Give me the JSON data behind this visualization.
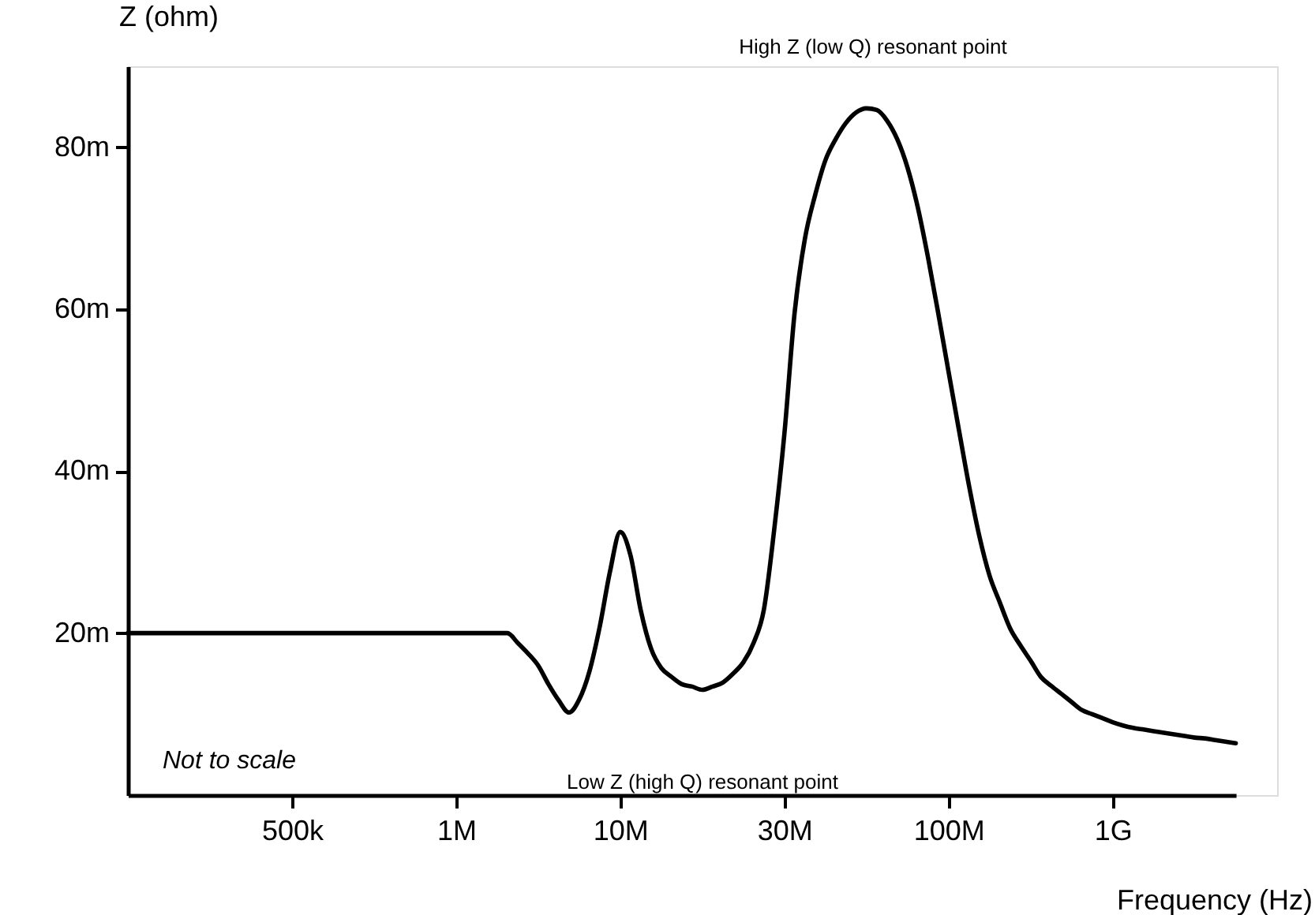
{
  "chart_data": {
    "type": "line",
    "xlabel": "Frequency (Hz)",
    "ylabel": "Z (ohm)",
    "categories": [
      null,
      null,
      null,
      null,
      null,
      null,
      null,
      null,
      null,
      null,
      null,
      null,
      null,
      null,
      null,
      null,
      "500k",
      null,
      null,
      null,
      null,
      null,
      null,
      null,
      null,
      null,
      null,
      null,
      null,
      null,
      null,
      null,
      "1M",
      null,
      null,
      null,
      null,
      null,
      null,
      null,
      null,
      null,
      null,
      null,
      null,
      null,
      null,
      null,
      "10M",
      null,
      null,
      null,
      null,
      null,
      null,
      null,
      null,
      null,
      null,
      null,
      null,
      null,
      null,
      null,
      "30M",
      null,
      null,
      null,
      null,
      null,
      null,
      null,
      null,
      null,
      null,
      null,
      null,
      null,
      null,
      null,
      "100M",
      null,
      null,
      null,
      null,
      null,
      null,
      null,
      null,
      null,
      null,
      null,
      null,
      null,
      null,
      null,
      "1G",
      null,
      null,
      null,
      null,
      null,
      null,
      null,
      null,
      null,
      null,
      null,
      null
    ],
    "series": [
      {
        "color": "#000000",
        "values": [
          20,
          20,
          20,
          20,
          20,
          20,
          20,
          20,
          20,
          20,
          20,
          20,
          20,
          20,
          20,
          20,
          20,
          20,
          20,
          20,
          20,
          20,
          20,
          20,
          20,
          20,
          20,
          20,
          20,
          20,
          20,
          20,
          20,
          20,
          20,
          20,
          20,
          20,
          18.8,
          17.5,
          16.0,
          13.7,
          11.7,
          10.2,
          11.8,
          15.3,
          20.8,
          27.6,
          32.5,
          29.6,
          22.8,
          18.1,
          15.7,
          14.6,
          13.7,
          13.4,
          13.0,
          13.4,
          13.9,
          15.0,
          16.4,
          18.8,
          22.9,
          32.7,
          44.6,
          59.6,
          68.7,
          74.1,
          78.4,
          81.0,
          83.0,
          84.3,
          84.8,
          84.6,
          83.3,
          81.0,
          77.5,
          72.6,
          66.4,
          59.5,
          52.3,
          45.2,
          38.2,
          32.0,
          27.1,
          23.8,
          20.6,
          18.5,
          16.6,
          14.6,
          13.5,
          12.5,
          11.5,
          10.5,
          10.0,
          9.5,
          9.0,
          8.6,
          8.3,
          8.1,
          7.9,
          7.7,
          7.5,
          7.3,
          7.1,
          7.0,
          6.8,
          6.6,
          6.4
        ]
      }
    ],
    "ylim": [
      0,
      90
    ],
    "yticks": [
      {
        "value": 20,
        "label": "20m"
      },
      {
        "value": 40,
        "label": "40m"
      },
      {
        "value": 60,
        "label": "60m"
      },
      {
        "value": 80,
        "label": "80m"
      }
    ],
    "grid": false,
    "marker": "none",
    "line_style": "solid",
    "annotations": [
      "High Z (low Q) resonant point",
      "Low Z (high Q) resonant point",
      "Not to scale"
    ]
  }
}
